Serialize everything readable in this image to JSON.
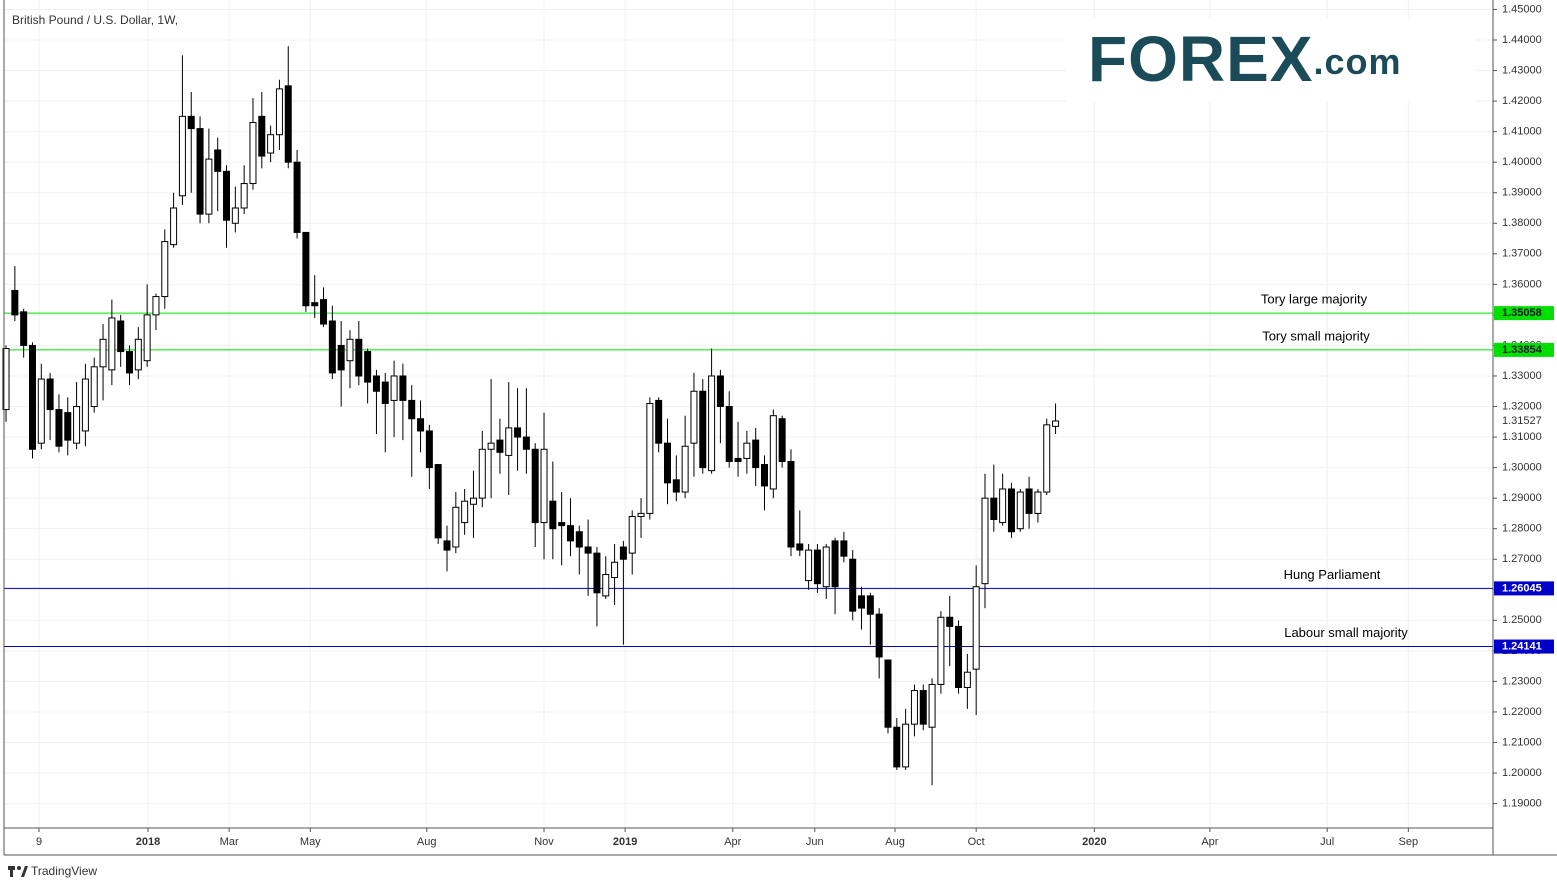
{
  "chart_data": {
    "type": "candlestick",
    "title": "British Pound / U.S. Dollar, 1W,",
    "logo": "FOREX",
    "logo_suffix": ".com",
    "footer": "TradingView",
    "up_color": "#ffffff",
    "down_color": "#000000",
    "grid": true,
    "series": [
      {
        "open": [
          1.319,
          1.358,
          1.351,
          1.34,
          1.308,
          1.329,
          1.319,
          1.318,
          1.308,
          1.312,
          1.32,
          1.333,
          1.332,
          1.348,
          1.338,
          1.332,
          1.335,
          1.35,
          1.356,
          1.373,
          1.389,
          1.415,
          1.411,
          1.383,
          1.404,
          1.397,
          1.38,
          1.385,
          1.393,
          1.415,
          1.403,
          1.409,
          1.425,
          1.4,
          1.377,
          1.354,
          1.355,
          1.348,
          1.34,
          1.335,
          1.342,
          1.338,
          1.33,
          1.328,
          1.322,
          1.33,
          1.322,
          1.316,
          1.312,
          1.301,
          1.276,
          1.274,
          1.282,
          1.288,
          1.29,
          1.306,
          1.309,
          1.304,
          1.313,
          1.31,
          1.306,
          1.282,
          1.289,
          1.282,
          1.281,
          1.279,
          1.274,
          1.272,
          1.258,
          1.264,
          1.274,
          1.272,
          1.284,
          1.285,
          1.322,
          1.308,
          1.296,
          1.292,
          1.308,
          1.325,
          1.299,
          1.33,
          1.32,
          1.303,
          1.303,
          1.309,
          1.301,
          1.293,
          1.316,
          1.302,
          1.275,
          1.263,
          1.273,
          1.261,
          1.276,
          1.276,
          1.27,
          1.258,
          1.258,
          1.252,
          1.237,
          1.215,
          1.202,
          1.216,
          1.227,
          1.215,
          1.229,
          1.251,
          1.248,
          1.228,
          1.234,
          1.262,
          1.29,
          1.282,
          1.293,
          1.28,
          1.293,
          1.285,
          1.292,
          1.3135
        ],
        "high": [
          1.34,
          1.366,
          1.352,
          1.341,
          1.334,
          1.331,
          1.324,
          1.323,
          1.328,
          1.334,
          1.336,
          1.347,
          1.355,
          1.35,
          1.34,
          1.346,
          1.36,
          1.357,
          1.378,
          1.39,
          1.435,
          1.423,
          1.415,
          1.411,
          1.408,
          1.399,
          1.392,
          1.399,
          1.421,
          1.423,
          1.412,
          1.427,
          1.438,
          1.404,
          1.377,
          1.363,
          1.359,
          1.353,
          1.348,
          1.345,
          1.348,
          1.339,
          1.332,
          1.331,
          1.335,
          1.334,
          1.327,
          1.322,
          1.314,
          1.301,
          1.281,
          1.292,
          1.293,
          1.299,
          1.312,
          1.329,
          1.316,
          1.328,
          1.326,
          1.326,
          1.308,
          1.318,
          1.302,
          1.292,
          1.29,
          1.281,
          1.283,
          1.274,
          1.271,
          1.275,
          1.276,
          1.286,
          1.29,
          1.323,
          1.323,
          1.316,
          1.304,
          1.317,
          1.331,
          1.329,
          1.339,
          1.332,
          1.325,
          1.315,
          1.312,
          1.313,
          1.304,
          1.319,
          1.317,
          1.306,
          1.286,
          1.275,
          1.275,
          1.275,
          1.277,
          1.279,
          1.273,
          1.261,
          1.259,
          1.254,
          1.237,
          1.218,
          1.221,
          1.229,
          1.229,
          1.231,
          1.253,
          1.258,
          1.25,
          1.239,
          1.268,
          1.298,
          1.301,
          1.298,
          1.295,
          1.293,
          1.297,
          1.293,
          1.316,
          1.321
        ],
        "low": [
          1.315,
          1.348,
          1.336,
          1.303,
          1.306,
          1.309,
          1.305,
          1.304,
          1.306,
          1.307,
          1.318,
          1.322,
          1.327,
          1.333,
          1.327,
          1.329,
          1.333,
          1.345,
          1.352,
          1.372,
          1.386,
          1.39,
          1.38,
          1.38,
          1.384,
          1.372,
          1.377,
          1.383,
          1.391,
          1.398,
          1.4,
          1.404,
          1.398,
          1.375,
          1.351,
          1.349,
          1.346,
          1.329,
          1.32,
          1.326,
          1.327,
          1.321,
          1.311,
          1.305,
          1.31,
          1.309,
          1.297,
          1.305,
          1.293,
          1.275,
          1.266,
          1.272,
          1.278,
          1.277,
          1.287,
          1.29,
          1.298,
          1.291,
          1.299,
          1.298,
          1.274,
          1.27,
          1.27,
          1.268,
          1.271,
          1.265,
          1.258,
          1.248,
          1.257,
          1.255,
          1.242,
          1.265,
          1.277,
          1.283,
          1.305,
          1.288,
          1.289,
          1.29,
          1.297,
          1.298,
          1.298,
          1.308,
          1.3,
          1.297,
          1.298,
          1.294,
          1.286,
          1.29,
          1.3,
          1.271,
          1.271,
          1.26,
          1.259,
          1.257,
          1.252,
          1.269,
          1.25,
          1.247,
          1.242,
          1.231,
          1.213,
          1.201,
          1.201,
          1.212,
          1.214,
          1.196,
          1.226,
          1.235,
          1.226,
          1.221,
          1.219,
          1.254,
          1.279,
          1.281,
          1.277,
          1.279,
          1.28,
          1.282,
          1.291,
          1.311
        ],
        "close": [
          1.339,
          1.35,
          1.34,
          1.306,
          1.329,
          1.319,
          1.307,
          1.309,
          1.32,
          1.329,
          1.333,
          1.342,
          1.349,
          1.338,
          1.331,
          1.342,
          1.35,
          1.356,
          1.374,
          1.385,
          1.415,
          1.411,
          1.383,
          1.401,
          1.397,
          1.381,
          1.385,
          1.393,
          1.413,
          1.402,
          1.409,
          1.424,
          1.4,
          1.377,
          1.353,
          1.353,
          1.347,
          1.331,
          1.332,
          1.342,
          1.33,
          1.328,
          1.325,
          1.321,
          1.33,
          1.322,
          1.316,
          1.312,
          1.3,
          1.277,
          1.273,
          1.287,
          1.289,
          1.29,
          1.306,
          1.308,
          1.305,
          1.313,
          1.31,
          1.306,
          1.282,
          1.306,
          1.28,
          1.281,
          1.276,
          1.274,
          1.272,
          1.259,
          1.265,
          1.269,
          1.27,
          1.284,
          1.285,
          1.321,
          1.308,
          1.295,
          1.292,
          1.307,
          1.325,
          1.3,
          1.33,
          1.32,
          1.302,
          1.302,
          1.308,
          1.3,
          1.294,
          1.317,
          1.302,
          1.274,
          1.273,
          1.273,
          1.262,
          1.274,
          1.261,
          1.271,
          1.253,
          1.254,
          1.252,
          1.238,
          1.215,
          1.202,
          1.216,
          1.227,
          1.216,
          1.229,
          1.251,
          1.248,
          1.228,
          1.233,
          1.261,
          1.29,
          1.283,
          1.293,
          1.279,
          1.292,
          1.285,
          1.292,
          1.314,
          1.31527
        ]
      }
    ],
    "levels": [
      {
        "name": "Tory large majority",
        "value": 1.35058,
        "color": "#00e000",
        "text_color": "#131722"
      },
      {
        "name": "Tory small majority",
        "value": 1.33854,
        "color": "#00e000",
        "text_color": "#131722"
      },
      {
        "name": "Hung Parliament",
        "value": 1.26045,
        "color": "#0000c8",
        "text_color": "#ffffff"
      },
      {
        "name": "Labour small majority",
        "value": 1.24141,
        "color": "#0000c8",
        "text_color": "#ffffff"
      }
    ],
    "xlim": [
      -0.23,
      168.6
    ],
    "xticks": [
      {
        "value": 3.74,
        "label": "9"
      },
      {
        "value": 16.1,
        "label": "2018"
      },
      {
        "value": 25.3,
        "label": "Mar"
      },
      {
        "value": 34.5,
        "label": "May"
      },
      {
        "value": 47.7,
        "label": "Aug"
      },
      {
        "value": 61.0,
        "label": "Nov"
      },
      {
        "value": 70.2,
        "label": "2019"
      },
      {
        "value": 82.4,
        "label": "Apr"
      },
      {
        "value": 91.7,
        "label": "Jun"
      },
      {
        "value": 100.8,
        "label": "Aug"
      },
      {
        "value": 110.0,
        "label": "Oct"
      },
      {
        "value": 123.4,
        "label": "2020"
      },
      {
        "value": 136.5,
        "label": "Apr"
      },
      {
        "value": 149.8,
        "label": "Jul"
      },
      {
        "value": 159.0,
        "label": "Sep"
      }
    ],
    "ylim": [
      1.182,
      1.4531
    ],
    "yticks": [
      {
        "value": 1.19,
        "label": "1.19000"
      },
      {
        "value": 1.2,
        "label": "1.20000"
      },
      {
        "value": 1.21,
        "label": "1.21000"
      },
      {
        "value": 1.22,
        "label": "1.22000"
      },
      {
        "value": 1.23,
        "label": "1.23000"
      },
      {
        "value": 1.24,
        "label": "1.24000"
      },
      {
        "value": 1.25,
        "label": "1.25000"
      },
      {
        "value": 1.26,
        "label": "1.26000"
      },
      {
        "value": 1.27,
        "label": "1.27000"
      },
      {
        "value": 1.28,
        "label": "1.28000"
      },
      {
        "value": 1.29,
        "label": "1.29000"
      },
      {
        "value": 1.3,
        "label": "1.30000"
      },
      {
        "value": 1.31,
        "label": "1.31000"
      },
      {
        "value": 1.32,
        "label": "1.32000"
      },
      {
        "value": 1.33,
        "label": "1.33000"
      },
      {
        "value": 1.34,
        "label": "1.34000"
      },
      {
        "value": 1.35,
        "label": "1.35000"
      },
      {
        "value": 1.36,
        "label": "1.36000"
      },
      {
        "value": 1.37,
        "label": "1.37000"
      },
      {
        "value": 1.38,
        "label": "1.38000"
      },
      {
        "value": 1.39,
        "label": "1.39000"
      },
      {
        "value": 1.4,
        "label": "1.40000"
      },
      {
        "value": 1.41,
        "label": "1.41000"
      },
      {
        "value": 1.42,
        "label": "1.42000"
      },
      {
        "value": 1.43,
        "label": "1.43000"
      },
      {
        "value": 1.44,
        "label": "1.44000"
      },
      {
        "value": 1.45,
        "label": "1.45000"
      }
    ]
  }
}
